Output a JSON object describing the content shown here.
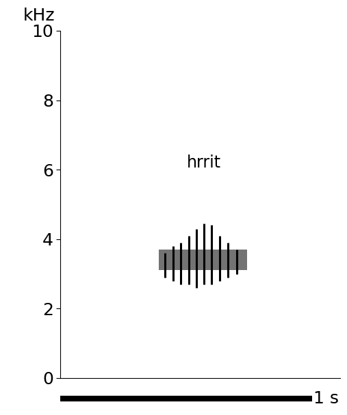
{
  "chart_data": {
    "type": "spectrogram",
    "y_label": "kHz",
    "annotation": {
      "text": "hrrit",
      "x": 0.57,
      "y": 6.2
    },
    "xlim": [
      0,
      1.11
    ],
    "ylim": [
      0,
      10
    ],
    "yticks": [
      0,
      2,
      4,
      6,
      8,
      10
    ],
    "tick_labels": "y",
    "color": "#000000",
    "pulses": {
      "times": [
        0.414,
        0.447,
        0.477,
        0.51,
        0.54,
        0.57,
        0.6,
        0.632,
        0.665,
        0.7
      ],
      "low": [
        2.9,
        2.8,
        2.7,
        2.7,
        2.6,
        2.7,
        2.7,
        2.8,
        2.9,
        3.0
      ],
      "high": [
        3.6,
        3.8,
        3.9,
        4.1,
        4.3,
        4.45,
        4.4,
        4.1,
        3.9,
        3.7
      ]
    },
    "band": {
      "start": 0.39,
      "end": 0.74,
      "low": 3.1,
      "high": 3.7
    },
    "scale_bar": {
      "length": 1,
      "label": "1 s"
    }
  }
}
